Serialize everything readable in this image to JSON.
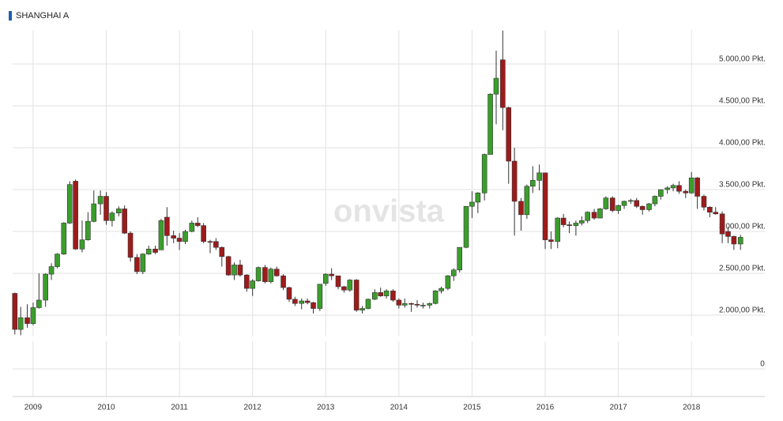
{
  "chart_data": [
    {
      "type": "candlestick",
      "title": "SHANGHAI A",
      "watermark": "onvista",
      "up_color": "#3b9e2c",
      "down_color": "#9e1b1b",
      "grid": true,
      "xlim": [
        2008.72,
        2018.7
      ],
      "xticks": [
        2009,
        2010,
        2011,
        2012,
        2013,
        2014,
        2015,
        2016,
        2017,
        2018
      ],
      "ylim": [
        1755,
        5406
      ],
      "yticks": [
        {
          "value": 2000,
          "label": "2.000,00 Pkt."
        },
        {
          "value": 2500,
          "label": "2.500,00 Pkt."
        },
        {
          "value": 3000,
          "label": "3.000,00 Pkt."
        },
        {
          "value": 3500,
          "label": "3.500,00 Pkt."
        },
        {
          "value": 4000,
          "label": "4.000,00 Pkt."
        },
        {
          "value": 4500,
          "label": "4.500,00 Pkt."
        },
        {
          "value": 5000,
          "label": "5.000,00 Pkt."
        }
      ],
      "x": [
        2008.75,
        2008.83,
        2008.92,
        2009,
        2009.08,
        2009.17,
        2009.25,
        2009.33,
        2009.42,
        2009.5,
        2009.58,
        2009.67,
        2009.75,
        2009.83,
        2009.92,
        2010,
        2010.08,
        2010.17,
        2010.25,
        2010.33,
        2010.42,
        2010.5,
        2010.58,
        2010.67,
        2010.75,
        2010.83,
        2010.92,
        2011,
        2011.08,
        2011.17,
        2011.25,
        2011.33,
        2011.42,
        2011.5,
        2011.58,
        2011.67,
        2011.75,
        2011.83,
        2011.92,
        2012,
        2012.08,
        2012.17,
        2012.25,
        2012.33,
        2012.42,
        2012.5,
        2012.58,
        2012.67,
        2012.75,
        2012.83,
        2012.92,
        2013,
        2013.08,
        2013.17,
        2013.25,
        2013.33,
        2013.42,
        2013.5,
        2013.58,
        2013.67,
        2013.75,
        2013.83,
        2013.92,
        2014,
        2014.08,
        2014.17,
        2014.25,
        2014.33,
        2014.42,
        2014.5,
        2014.58,
        2014.67,
        2014.75,
        2014.83,
        2014.92,
        2015,
        2015.08,
        2015.17,
        2015.25,
        2015.33,
        2015.42,
        2015.5,
        2015.58,
        2015.67,
        2015.75,
        2015.83,
        2015.92,
        2016,
        2016.08,
        2016.17,
        2016.25,
        2016.33,
        2016.42,
        2016.5,
        2016.58,
        2016.67,
        2016.75,
        2016.83,
        2016.92,
        2017,
        2017.08,
        2017.17,
        2017.25,
        2017.33,
        2017.42,
        2017.5,
        2017.58,
        2017.67,
        2017.75,
        2017.83,
        2017.92,
        2018,
        2018.08,
        2018.17,
        2018.25,
        2018.33,
        2018.42,
        2018.5,
        2018.58,
        2018.67
      ],
      "open": [
        2260,
        1830,
        1970,
        1900,
        2090,
        2180,
        2490,
        2580,
        2730,
        3100,
        3600,
        2790,
        2900,
        3120,
        3330,
        3420,
        3130,
        3220,
        3270,
        2980,
        2690,
        2520,
        2730,
        2790,
        2780,
        3170,
        2950,
        2920,
        2880,
        3000,
        3100,
        3070,
        2880,
        2880,
        2810,
        2700,
        2480,
        2600,
        2480,
        2320,
        2410,
        2570,
        2400,
        2550,
        2470,
        2330,
        2190,
        2140,
        2170,
        2150,
        2080,
        2380,
        2490,
        2470,
        2340,
        2300,
        2420,
        2060,
        2080,
        2190,
        2270,
        2230,
        2290,
        2180,
        2120,
        2140,
        2130,
        2120,
        2120,
        2140,
        2290,
        2320,
        2470,
        2540,
        2810,
        3300,
        3350,
        3460,
        3920,
        4640,
        5050,
        4480,
        3840,
        3360,
        3200,
        3540,
        3610,
        3700,
        2900,
        2880,
        3160,
        3080,
        3070,
        3100,
        3130,
        3230,
        3160,
        3270,
        3400,
        3250,
        3310,
        3360,
        3370,
        3300,
        3260,
        3330,
        3420,
        3500,
        3520,
        3550,
        3480,
        3460,
        3640,
        3420,
        3290,
        3230,
        3210,
        3000,
        2940,
        2850
      ],
      "high": [
        2270,
        2100,
        2130,
        2150,
        2500,
        2500,
        2620,
        2740,
        3110,
        3600,
        3620,
        3130,
        3230,
        3490,
        3490,
        3470,
        3240,
        3300,
        3310,
        3000,
        2730,
        2740,
        2830,
        2830,
        3150,
        3290,
        3010,
        2980,
        3020,
        3130,
        3170,
        3100,
        2900,
        2920,
        2820,
        2710,
        2630,
        2660,
        2490,
        2430,
        2580,
        2600,
        2570,
        2580,
        2490,
        2340,
        2220,
        2200,
        2200,
        2160,
        2370,
        2500,
        2560,
        2470,
        2350,
        2430,
        2430,
        2110,
        2200,
        2310,
        2330,
        2310,
        2310,
        2200,
        2200,
        2150,
        2180,
        2150,
        2150,
        2300,
        2340,
        2480,
        2560,
        2810,
        3300,
        3480,
        3470,
        3930,
        4650,
        5160,
        5400,
        4490,
        4000,
        3400,
        3560,
        3780,
        3800,
        3700,
        3000,
        3170,
        3210,
        3120,
        3130,
        3180,
        3240,
        3270,
        3280,
        3420,
        3420,
        3320,
        3370,
        3390,
        3400,
        3310,
        3340,
        3430,
        3500,
        3540,
        3570,
        3600,
        3500,
        3710,
        3650,
        3440,
        3300,
        3290,
        3240,
        3050,
        2950,
        2960
      ],
      "low": [
        1770,
        1760,
        1850,
        1880,
        2080,
        2100,
        2420,
        2560,
        2720,
        3090,
        2780,
        2750,
        2890,
        3110,
        3200,
        3080,
        3060,
        3180,
        2970,
        2640,
        2490,
        2490,
        2720,
        2730,
        2780,
        2830,
        2860,
        2780,
        2850,
        2990,
        3050,
        2860,
        2740,
        2780,
        2580,
        2470,
        2420,
        2460,
        2280,
        2230,
        2400,
        2380,
        2380,
        2460,
        2300,
        2160,
        2110,
        2070,
        2130,
        2020,
        2050,
        2350,
        2420,
        2310,
        2270,
        2280,
        2040,
        2020,
        2070,
        2180,
        2220,
        2200,
        2160,
        2080,
        2090,
        2040,
        2090,
        2080,
        2080,
        2130,
        2260,
        2300,
        2410,
        2510,
        2800,
        3160,
        3220,
        3370,
        3920,
        4280,
        4210,
        3570,
        2950,
        3010,
        3150,
        3460,
        3490,
        2790,
        2790,
        2800,
        3050,
        2980,
        2950,
        3070,
        3100,
        3140,
        3160,
        3260,
        3230,
        3210,
        3270,
        3330,
        3280,
        3200,
        3240,
        3300,
        3380,
        3450,
        3480,
        3450,
        3400,
        3450,
        3270,
        3250,
        3170,
        3200,
        2860,
        2860,
        2780,
        2780
      ],
      "close": [
        1830,
        1970,
        1900,
        2090,
        2180,
        2490,
        2580,
        2730,
        3100,
        3560,
        2790,
        2900,
        3120,
        3330,
        3420,
        3130,
        3220,
        3270,
        2980,
        2690,
        2520,
        2730,
        2790,
        2750,
        3130,
        2950,
        2920,
        2880,
        3000,
        3100,
        3070,
        2880,
        2870,
        2810,
        2700,
        2480,
        2600,
        2480,
        2320,
        2410,
        2570,
        2400,
        2550,
        2470,
        2330,
        2190,
        2140,
        2170,
        2150,
        2080,
        2370,
        2490,
        2470,
        2340,
        2300,
        2420,
        2060,
        2080,
        2190,
        2270,
        2230,
        2290,
        2180,
        2120,
        2140,
        2130,
        2120,
        2120,
        2140,
        2290,
        2320,
        2470,
        2540,
        2810,
        3300,
        3350,
        3460,
        3920,
        4640,
        4830,
        4480,
        3840,
        3360,
        3200,
        3540,
        3610,
        3700,
        2900,
        2880,
        3160,
        3080,
        3070,
        3100,
        3130,
        3230,
        3160,
        3270,
        3400,
        3250,
        3310,
        3360,
        3370,
        3300,
        3260,
        3330,
        3420,
        3500,
        3520,
        3550,
        3480,
        3460,
        3640,
        3420,
        3290,
        3230,
        3210,
        2970,
        2940,
        2850,
        2930
      ]
    },
    {
      "type": "empty",
      "ylim": [
        -1,
        1
      ],
      "yticks": [
        0
      ]
    }
  ]
}
